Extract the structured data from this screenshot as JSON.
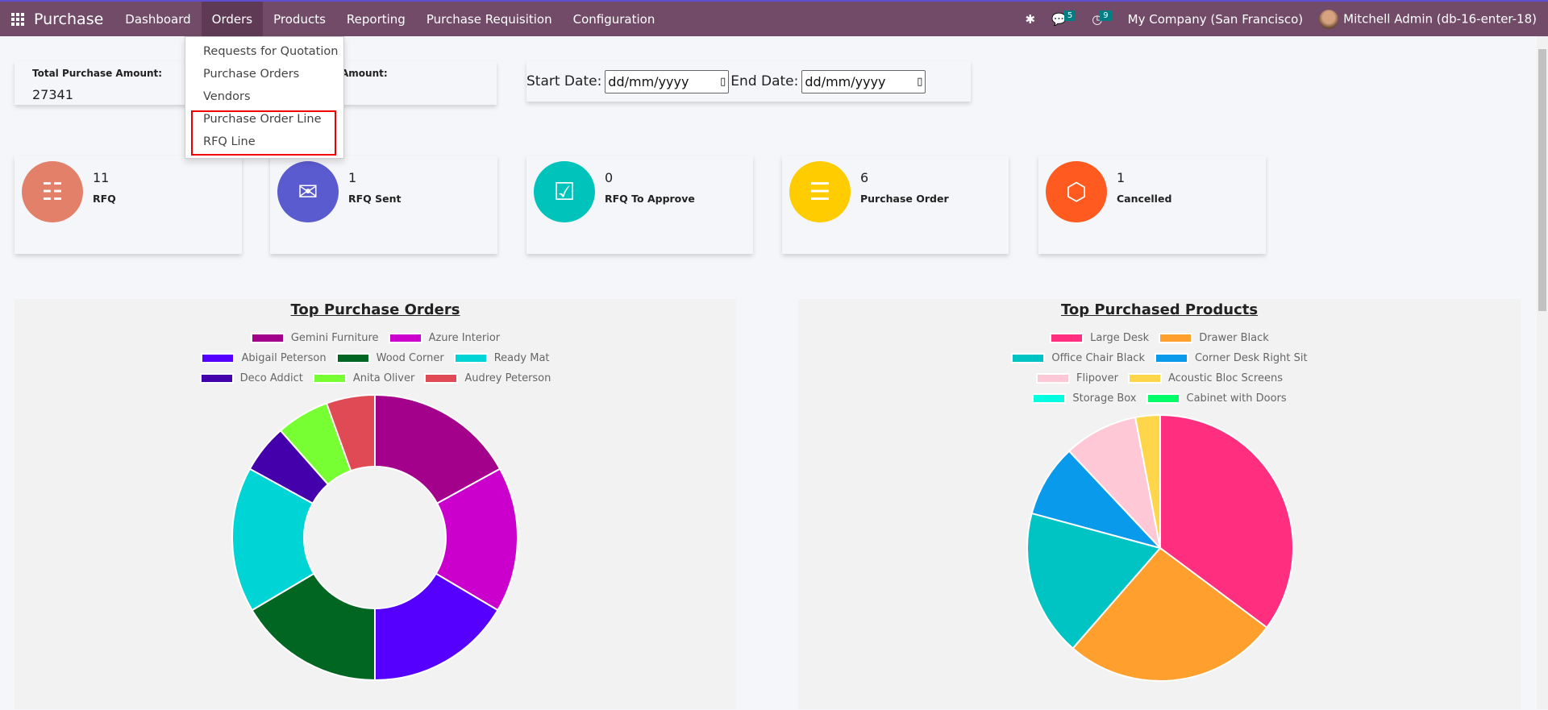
{
  "navbar": {
    "app_name": "Purchase",
    "menus": [
      "Dashboard",
      "Orders",
      "Products",
      "Reporting",
      "Purchase Requisition",
      "Configuration"
    ],
    "messages_count": "5",
    "activities_count": "9",
    "company": "My Company (San Francisco)",
    "user": "Mitchell Admin (db-16-enter-18)"
  },
  "orders_dropdown": {
    "items": [
      "Requests for Quotation",
      "Purchase Orders",
      "Vendors",
      "Purchase Order Line",
      "RFQ Line"
    ]
  },
  "summary": {
    "total_label": "Total Purchase Amount:",
    "total_value": "27341",
    "second_label": "Amount:"
  },
  "dates": {
    "start_label": "Start Date:",
    "start_placeholder": "dd/mm/yyyy",
    "end_label": "End Date:",
    "end_placeholder": "dd/mm/yyyy"
  },
  "kpis": [
    {
      "value": "11",
      "label": "RFQ",
      "color": "#e3806a"
    },
    {
      "value": "1",
      "label": "RFQ Sent",
      "color": "#5b5bd0"
    },
    {
      "value": "0",
      "label": "RFQ To Approve",
      "color": "#00c4bc"
    },
    {
      "value": "6",
      "label": "Purchase Order",
      "color": "#ffcc00"
    },
    {
      "value": "1",
      "label": "Cancelled",
      "color": "#ff5a1f"
    }
  ],
  "chart_data": [
    {
      "type": "pie",
      "variant": "doughnut",
      "title": "Top Purchase Orders",
      "legend": "top",
      "categories": [
        "Gemini Furniture",
        "Azure Interior",
        "Abigail Peterson",
        "Wood Corner",
        "Ready Mat",
        "Deco Addict",
        "Anita Oliver",
        "Audrey Peterson"
      ],
      "values": [
        17,
        16.5,
        16.5,
        16.5,
        16.5,
        5.5,
        6,
        5.5
      ],
      "colors": [
        "#a3008b",
        "#cc00cc",
        "#5500ff",
        "#006622",
        "#00d4d4",
        "#4400aa",
        "#77ff33",
        "#e04a55"
      ]
    },
    {
      "type": "pie",
      "title": "Top Purchased Products",
      "legend": "top",
      "categories": [
        "Large Desk",
        "Drawer Black",
        "Office Chair Black",
        "Corner Desk Right Sit",
        "Flipover",
        "Acoustic Bloc Screens",
        "Storage Box",
        "Cabinet with Doors"
      ],
      "values": [
        35.2,
        26.2,
        17.8,
        8.8,
        9.0,
        3.0,
        0,
        0
      ],
      "colors": [
        "#ff2e7e",
        "#ff9f2e",
        "#00c4c4",
        "#0a9aeb",
        "#ffc8d6",
        "#ffd54a",
        "#00ffe0",
        "#00ff66"
      ]
    }
  ]
}
